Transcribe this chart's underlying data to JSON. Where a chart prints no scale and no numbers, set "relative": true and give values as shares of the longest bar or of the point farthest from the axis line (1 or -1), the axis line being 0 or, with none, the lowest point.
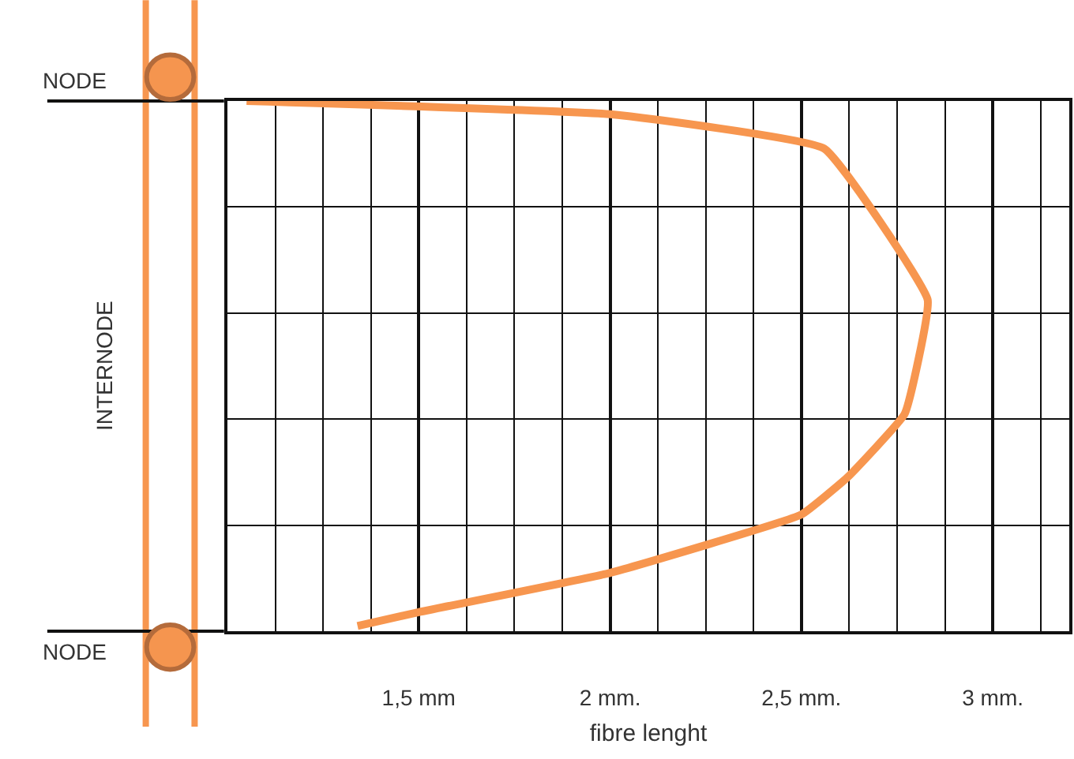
{
  "chart_data": {
    "type": "line",
    "xlabel": "fibre lenght",
    "ylabel": "INTERNODE",
    "x": [
      1.05,
      2.0,
      2.56,
      2.83,
      2.77,
      2.62,
      2.5,
      2.0,
      1.5,
      1.34
    ],
    "series": [
      {
        "color": "#f7964f",
        "values": [
          1.0,
          0.975,
          0.91,
          0.625,
          0.41,
          0.29,
          0.22,
          0.11,
          0.036,
          0.01
        ]
      }
    ],
    "xlim": [
      1.0,
      3.2
    ],
    "xticks": [
      {
        "value": 1.0,
        "label": null
      },
      {
        "value": 1.5,
        "label": "1,5 mm"
      },
      {
        "value": 2.0,
        "label": "2 mm."
      },
      {
        "value": 2.5,
        "label": "2,5 mm."
      },
      {
        "value": 3.0,
        "label": "3 mm."
      }
    ],
    "relative": true,
    "annotations": [
      "NODE",
      "NODE"
    ],
    "grid": true,
    "marker": "none",
    "line_style": "solid"
  }
}
